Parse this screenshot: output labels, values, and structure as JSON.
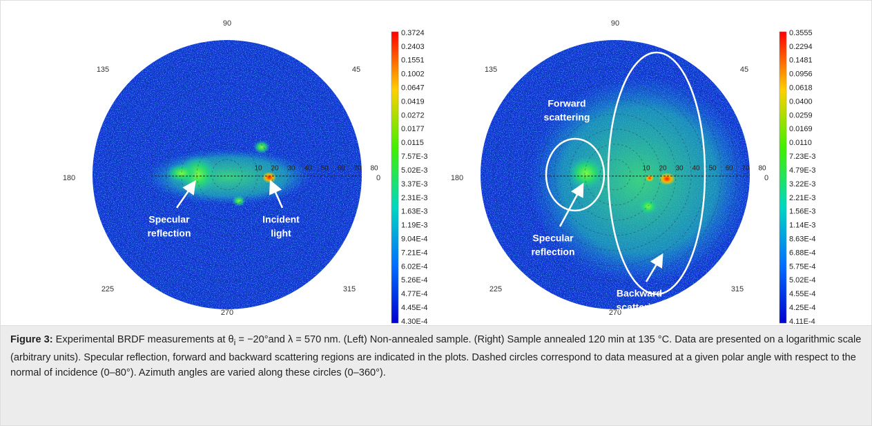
{
  "figure": {
    "panels": [
      {
        "angle_labels": [
          "90",
          "135",
          "45",
          "180",
          "0",
          "225",
          "315",
          "270"
        ],
        "radial_labels": [
          "10",
          "20",
          "30",
          "40",
          "50",
          "60",
          "70",
          "80"
        ],
        "colorbar": [
          "0.3724",
          "0.2403",
          "0.1551",
          "0.1002",
          "0.0647",
          "0.0419",
          "0.0272",
          "0.0177",
          "0.0115",
          "7.57E-3",
          "5.02E-3",
          "3.37E-3",
          "2.31E-3",
          "1.63E-3",
          "1.19E-3",
          "9.04E-4",
          "7.21E-4",
          "6.02E-4",
          "5.26E-4",
          "4.77E-4",
          "4.45E-4",
          "4.30E-4"
        ],
        "annotations": [
          [
            "Specular",
            "reflection"
          ],
          [
            "Incident",
            "light"
          ]
        ]
      },
      {
        "angle_labels": [
          "90",
          "135",
          "45",
          "180",
          "0",
          "225",
          "315",
          "270"
        ],
        "radial_labels": [
          "10",
          "20",
          "30",
          "40",
          "50",
          "60",
          "70",
          "80"
        ],
        "colorbar": [
          "0.3555",
          "0.2294",
          "0.1481",
          "0.0956",
          "0.0618",
          "0.0400",
          "0.0259",
          "0.0169",
          "0.0110",
          "7.23E-3",
          "4.79E-3",
          "3.22E-3",
          "2.21E-3",
          "1.56E-3",
          "1.14E-3",
          "8.63E-4",
          "6.88E-4",
          "5.75E-4",
          "5.02E-4",
          "4.55E-4",
          "4.25E-4",
          "4.11E-4"
        ],
        "annotations": [
          [
            "Forward",
            "scattering"
          ],
          [
            "Specular",
            "reflection"
          ],
          [
            "Backward",
            "scattering"
          ]
        ]
      }
    ],
    "caption": {
      "label": "Figure 3:",
      "text_before": " Experimental BRDF measurements at θ",
      "subscript": "i",
      "text_after": " = −20°and λ = 570 nm. (Left) Non-annealed sample. (Right) Sample annealed 120 min at 135 °C. Data are presented on a logarithmic scale (arbitrary units). Specular reflection, forward and backward scattering regions are indicated in the plots. Dashed circles correspond to data measured at a given polar angle with respect to the normal of incidence (0–80°). Azimuth angles are varied along these circles (0–360°)."
    }
  }
}
